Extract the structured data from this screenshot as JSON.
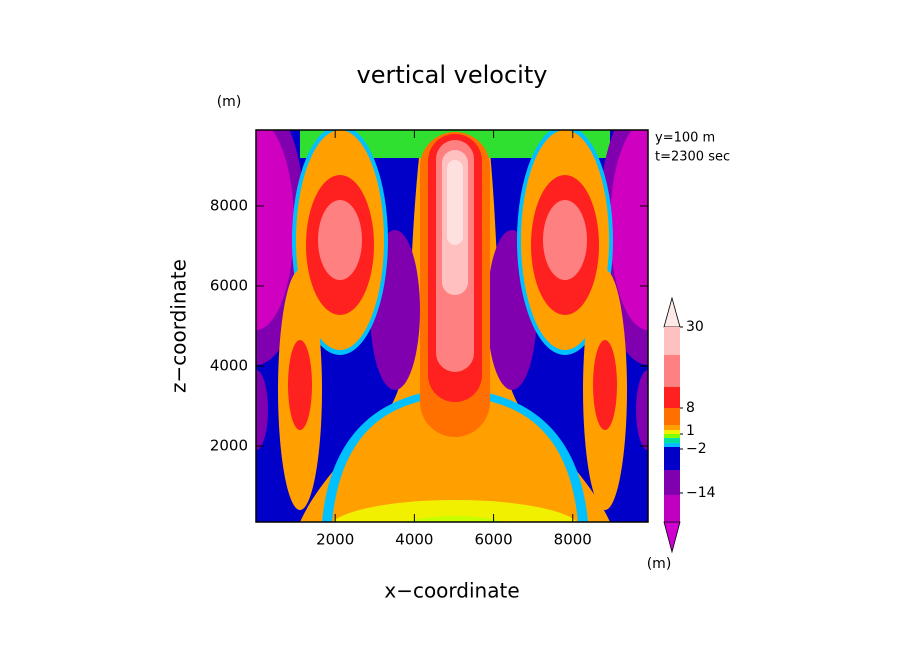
{
  "chart_data": {
    "type": "contour",
    "title": "vertical velocity",
    "x_label": "x−coordinate",
    "y_label": "z−coordinate",
    "y_unit": "(m)",
    "colorbar_unit": "(m)",
    "annotations": [
      "y=100 m",
      "t=2300 sec"
    ],
    "xlim": [
      0,
      9900
    ],
    "ylim": [
      100,
      9900
    ],
    "xticks": [
      2000,
      4000,
      6000,
      8000
    ],
    "yticks": [
      2000,
      4000,
      6000,
      8000
    ],
    "colorbar": {
      "colors": [
        "#ffe8e8",
        "#ffc0c0",
        "#ff8080",
        "#ff2020",
        "#ff7000",
        "#ffa000",
        "#f0f000",
        "#80ff00",
        "#00e0a0",
        "#00c0ff",
        "#0000c8",
        "#8000b0",
        "#c000c0",
        "#d000d0"
      ],
      "ticks": [
        30,
        8,
        1,
        {
          "value": -2,
          "label": "−2"
        },
        {
          "value": -14,
          "label": "−14"
        }
      ]
    }
  }
}
